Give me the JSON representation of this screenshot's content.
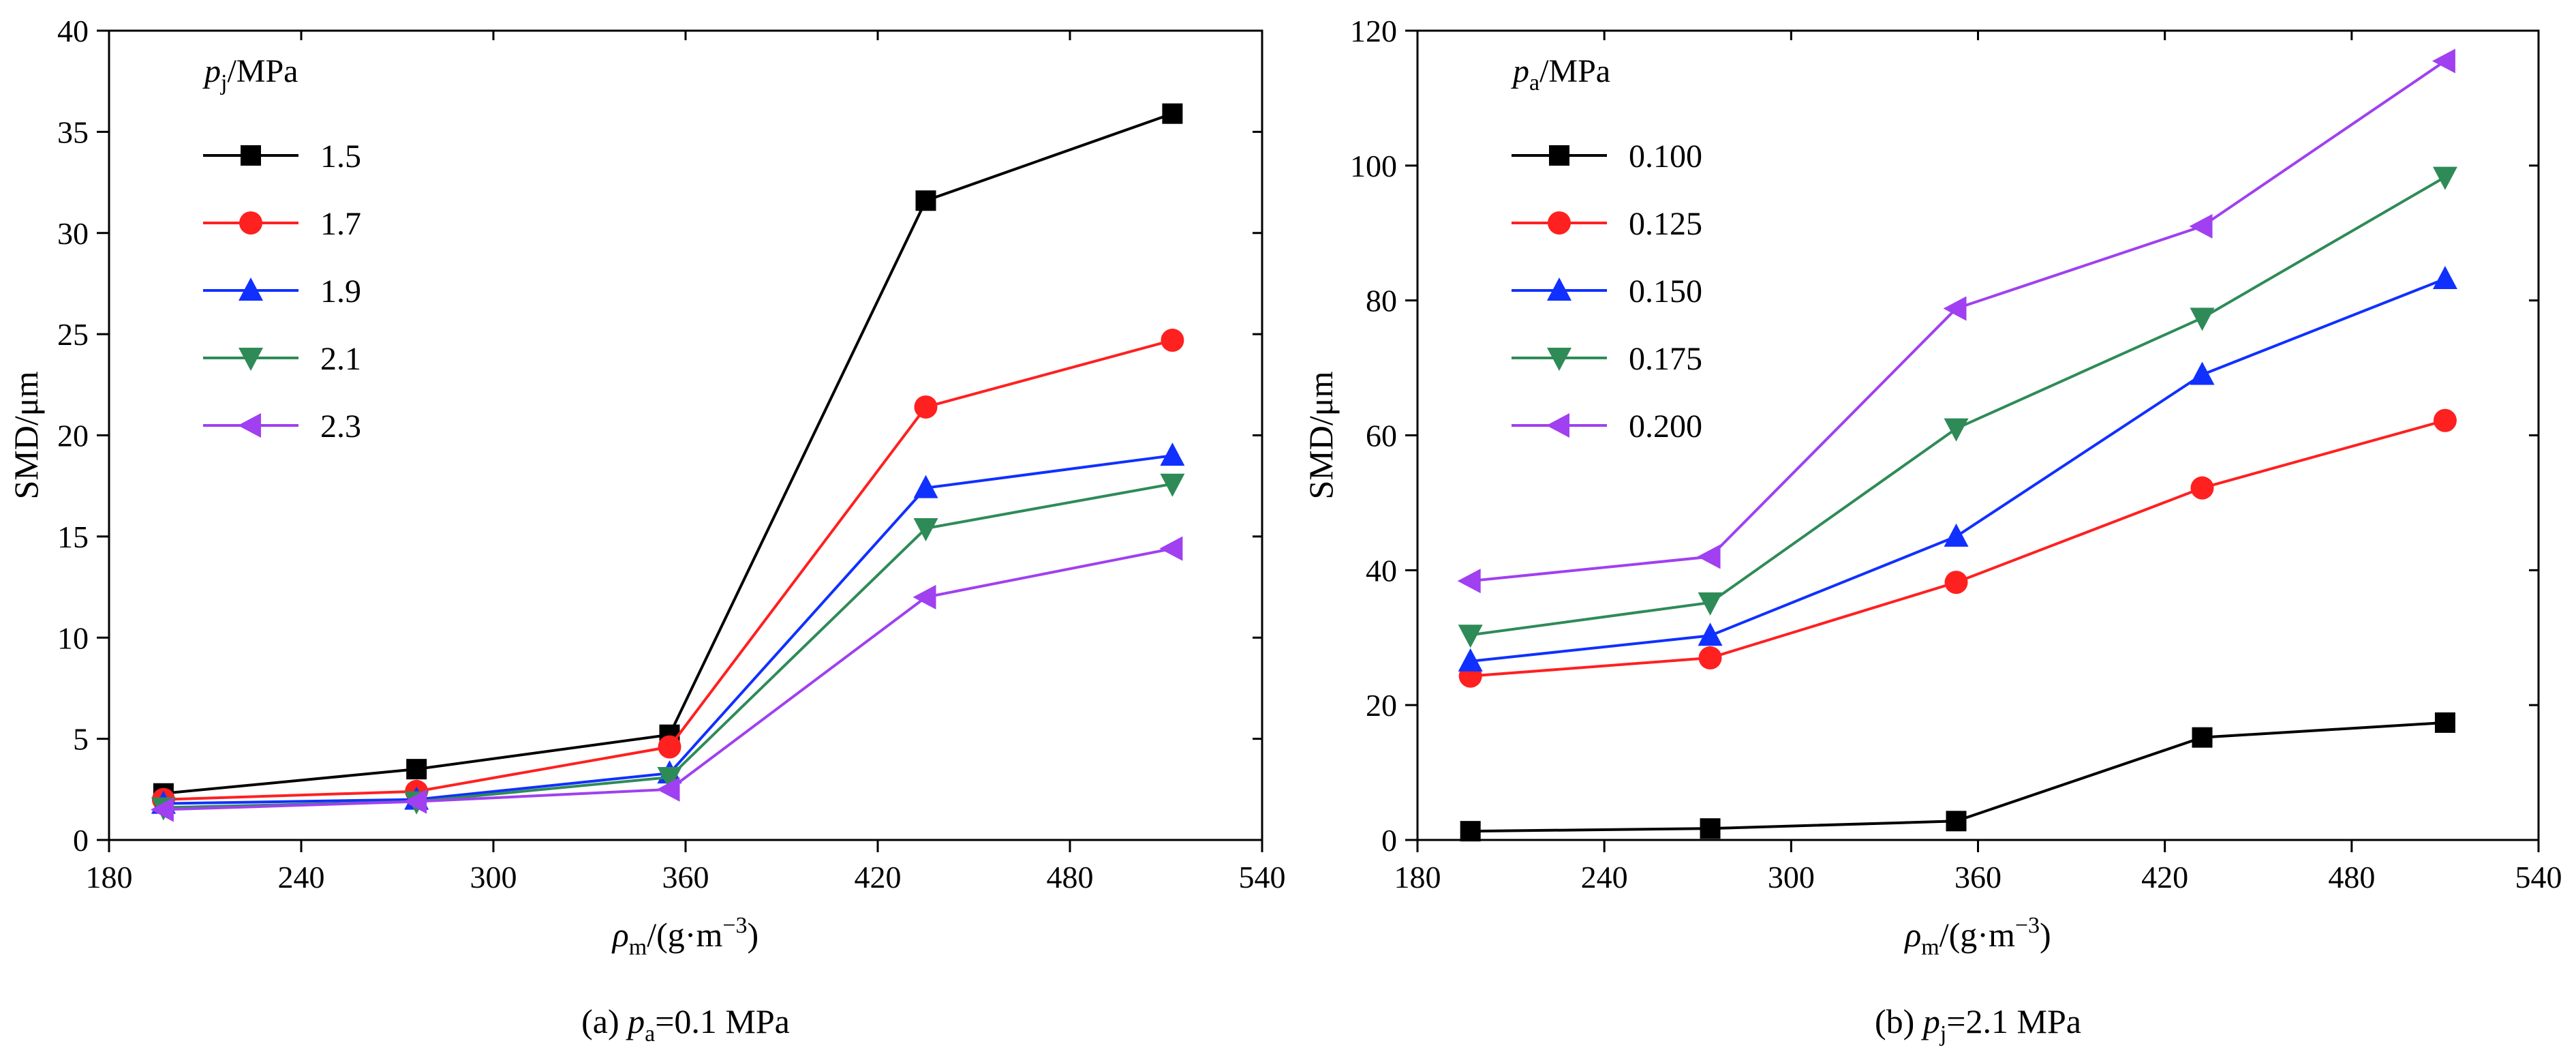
{
  "chart_data": [
    {
      "type": "line",
      "panel_id": "a",
      "caption": {
        "prefix": "(a) ",
        "symbol": "p",
        "subscript": "a",
        "suffix": "=0.1 MPa"
      },
      "xlabel": {
        "symbol": "ρ",
        "subscript": "m",
        "suffix": "/(g·m",
        "sup": "−3",
        "close": ")"
      },
      "ylabel": "SMD/μm",
      "xlim": [
        180,
        540
      ],
      "ylim": [
        0,
        40
      ],
      "xticks": [
        180,
        240,
        300,
        360,
        420,
        480,
        540
      ],
      "yticks": [
        0,
        5,
        10,
        15,
        20,
        25,
        30,
        35,
        40
      ],
      "legend": {
        "title": {
          "symbol": "p",
          "subscript": "j",
          "suffix": "/MPa"
        },
        "position": "top-left"
      },
      "x": [
        197,
        276,
        355,
        435,
        512
      ],
      "series": [
        {
          "name": "1.5",
          "color": "#000000",
          "marker": "square",
          "values": [
            2.3,
            3.5,
            5.2,
            31.6,
            35.9
          ]
        },
        {
          "name": "1.7",
          "color": "#ff2020",
          "marker": "circle",
          "values": [
            2.0,
            2.4,
            4.6,
            21.4,
            24.7
          ]
        },
        {
          "name": "1.9",
          "color": "#1030ff",
          "marker": "triangle-up",
          "values": [
            1.8,
            2.0,
            3.3,
            17.4,
            19.0
          ]
        },
        {
          "name": "2.1",
          "color": "#2e8b57",
          "marker": "triangle-down",
          "values": [
            1.6,
            1.9,
            3.1,
            15.4,
            17.6
          ]
        },
        {
          "name": "2.3",
          "color": "#a040f0",
          "marker": "triangle-left",
          "values": [
            1.5,
            1.9,
            2.5,
            12.0,
            14.4
          ]
        }
      ]
    },
    {
      "type": "line",
      "panel_id": "b",
      "caption": {
        "prefix": "(b) ",
        "symbol": "p",
        "subscript": "j",
        "suffix": "=2.1 MPa"
      },
      "xlabel": {
        "symbol": "ρ",
        "subscript": "m",
        "suffix": "/(g·m",
        "sup": "−3",
        "close": ")"
      },
      "ylabel": "SMD/μm",
      "xlim": [
        180,
        540
      ],
      "ylim": [
        0,
        120
      ],
      "xticks": [
        180,
        240,
        300,
        360,
        420,
        480,
        540
      ],
      "yticks": [
        0,
        20,
        40,
        60,
        80,
        100,
        120
      ],
      "legend": {
        "title": {
          "symbol": "p",
          "subscript": "a",
          "suffix": "/MPa"
        },
        "position": "top-left"
      },
      "x": [
        197,
        274,
        353,
        432,
        510
      ],
      "series": [
        {
          "name": "0.100",
          "color": "#000000",
          "marker": "square",
          "values": [
            1.3,
            1.7,
            2.8,
            15.2,
            17.4
          ]
        },
        {
          "name": "0.125",
          "color": "#ff2020",
          "marker": "circle",
          "values": [
            24.3,
            27.0,
            38.2,
            52.2,
            62.2
          ]
        },
        {
          "name": "0.150",
          "color": "#1030ff",
          "marker": "triangle-up",
          "values": [
            26.5,
            30.3,
            45.0,
            69.0,
            83.2
          ]
        },
        {
          "name": "0.175",
          "color": "#2e8b57",
          "marker": "triangle-down",
          "values": [
            30.4,
            35.2,
            61.0,
            77.4,
            98.3
          ]
        },
        {
          "name": "0.200",
          "color": "#a040f0",
          "marker": "triangle-left",
          "values": [
            38.4,
            42.0,
            78.8,
            91.0,
            115.5
          ]
        }
      ]
    }
  ]
}
